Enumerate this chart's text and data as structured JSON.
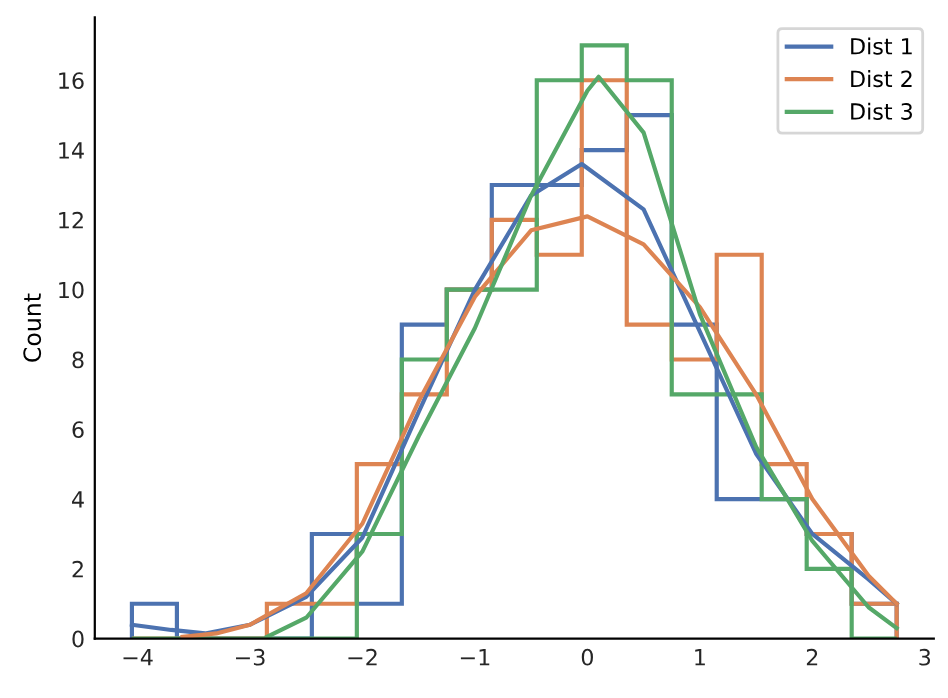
{
  "chart_data": {
    "type": "histogram",
    "ylabel": "Count",
    "xlim": [
      -4.38,
      3.08
    ],
    "ylim": [
      0,
      17.8
    ],
    "xticks": [
      {
        "value": -4,
        "label": "−4"
      },
      {
        "value": -3,
        "label": "−3"
      },
      {
        "value": -2,
        "label": "−2"
      },
      {
        "value": -1,
        "label": "−1"
      },
      0,
      1,
      2,
      3
    ],
    "yticks": [
      0,
      2,
      4,
      6,
      8,
      10,
      12,
      14,
      16
    ],
    "grid": false,
    "legend": "top right",
    "bins": [
      -4.05,
      -3.65,
      -3.25,
      -2.85,
      -2.45,
      -2.05,
      -1.65,
      -1.25,
      -0.85,
      -0.45,
      -0.05,
      0.35,
      0.75,
      1.15,
      1.55,
      1.95,
      2.35,
      2.75
    ],
    "series": [
      {
        "name": "Dist 1",
        "color": "#4c72b0",
        "values": [
          1,
          0,
          0,
          0,
          3,
          1,
          9,
          10,
          13,
          13,
          14,
          15,
          9,
          4,
          4,
          3,
          1
        ]
      },
      {
        "name": "Dist 2",
        "color": "#dd8452",
        "values": [
          0,
          0,
          0,
          1,
          1,
          5,
          7,
          10,
          12,
          11,
          16,
          9,
          8,
          11,
          5,
          3,
          1
        ]
      },
      {
        "name": "Dist 3",
        "color": "#55a868",
        "values": [
          0,
          0,
          0,
          0,
          0,
          3,
          8,
          10,
          10,
          16,
          17,
          16,
          7,
          7,
          4,
          2,
          0
        ]
      },
      {
        "type": "line",
        "color": "#4c72b0",
        "x": [
          -4.05,
          -3.7,
          -3.4,
          -3,
          -2.5,
          -2,
          -1.5,
          -1,
          -0.5,
          -0.05,
          0.5,
          1,
          1.5,
          2,
          2.5,
          2.75
        ],
        "values": [
          0.4,
          0.25,
          0.15,
          0.4,
          1.2,
          2.9,
          6.5,
          10,
          12.7,
          13.6,
          12.3,
          8.8,
          5.3,
          3,
          1.7,
          1
        ]
      },
      {
        "type": "line",
        "color": "#dd8452",
        "x": [
          -3.6,
          -3.3,
          -3,
          -2.5,
          -2,
          -1.5,
          -1,
          -0.5,
          0,
          0.5,
          1,
          1.5,
          2,
          2.5,
          2.75
        ],
        "values": [
          0.05,
          0.15,
          0.4,
          1.3,
          3.3,
          6.8,
          9.8,
          11.7,
          12.1,
          11.3,
          9.5,
          7,
          4,
          1.8,
          1
        ]
      },
      {
        "type": "line",
        "color": "#55a868",
        "x": [
          -2.85,
          -2.5,
          -2,
          -1.5,
          -1,
          -0.5,
          0,
          0.1,
          0.5,
          1,
          1.5,
          2,
          2.5,
          2.75
        ],
        "values": [
          0.05,
          0.6,
          2.5,
          5.8,
          8.9,
          12.7,
          15.7,
          16.1,
          14.5,
          9.3,
          5.5,
          2.8,
          0.9,
          0.3
        ]
      }
    ]
  }
}
